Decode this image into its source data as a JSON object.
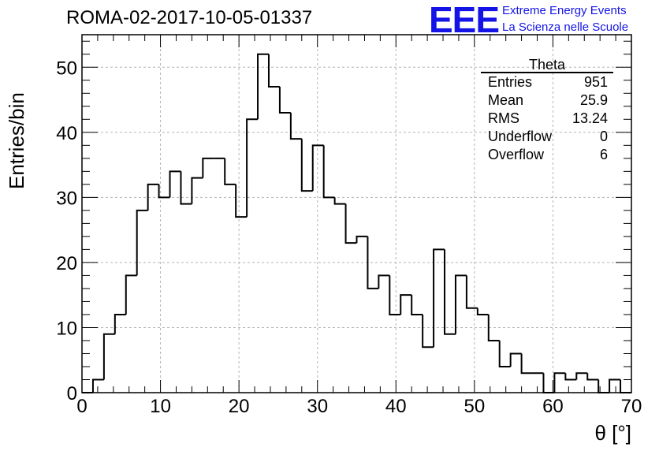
{
  "header": {
    "title": "ROMA-02-2017-10-05-01337",
    "logo_mark": "EEE",
    "logo_line1": "Extreme Energy Events",
    "logo_line2": "La Scienza nelle Scuole"
  },
  "stats": {
    "title": "Theta",
    "rows": [
      {
        "label": "Entries",
        "value": "951"
      },
      {
        "label": "Mean",
        "value": "25.9"
      },
      {
        "label": "RMS",
        "value": "13.24"
      },
      {
        "label": "Underflow",
        "value": "0"
      },
      {
        "label": "Overflow",
        "value": "6"
      }
    ]
  },
  "colors": {
    "line": "#000000",
    "grid": "#b4b4b4",
    "logo": "#1414e6"
  },
  "chart_data": {
    "type": "histogram",
    "xlabel": "θ [°]",
    "ylabel": "Entries/bin",
    "xlim": [
      0,
      70
    ],
    "ylim": [
      0,
      55
    ],
    "bin_width": 1.4,
    "xticks": [
      0,
      10,
      20,
      30,
      40,
      50,
      60,
      70
    ],
    "yticks": [
      0,
      10,
      20,
      30,
      40,
      50
    ],
    "grid": true,
    "values": [
      0,
      2,
      9,
      12,
      18,
      28,
      32,
      30,
      34,
      29,
      33,
      36,
      36,
      32,
      27,
      42,
      52,
      47,
      43,
      39,
      31,
      38,
      30,
      29,
      23,
      24,
      16,
      18,
      12,
      15,
      12,
      7,
      22,
      9,
      18,
      13,
      12,
      8,
      4,
      6,
      3,
      3,
      0,
      3,
      2,
      3,
      2,
      0,
      2,
      0
    ]
  }
}
